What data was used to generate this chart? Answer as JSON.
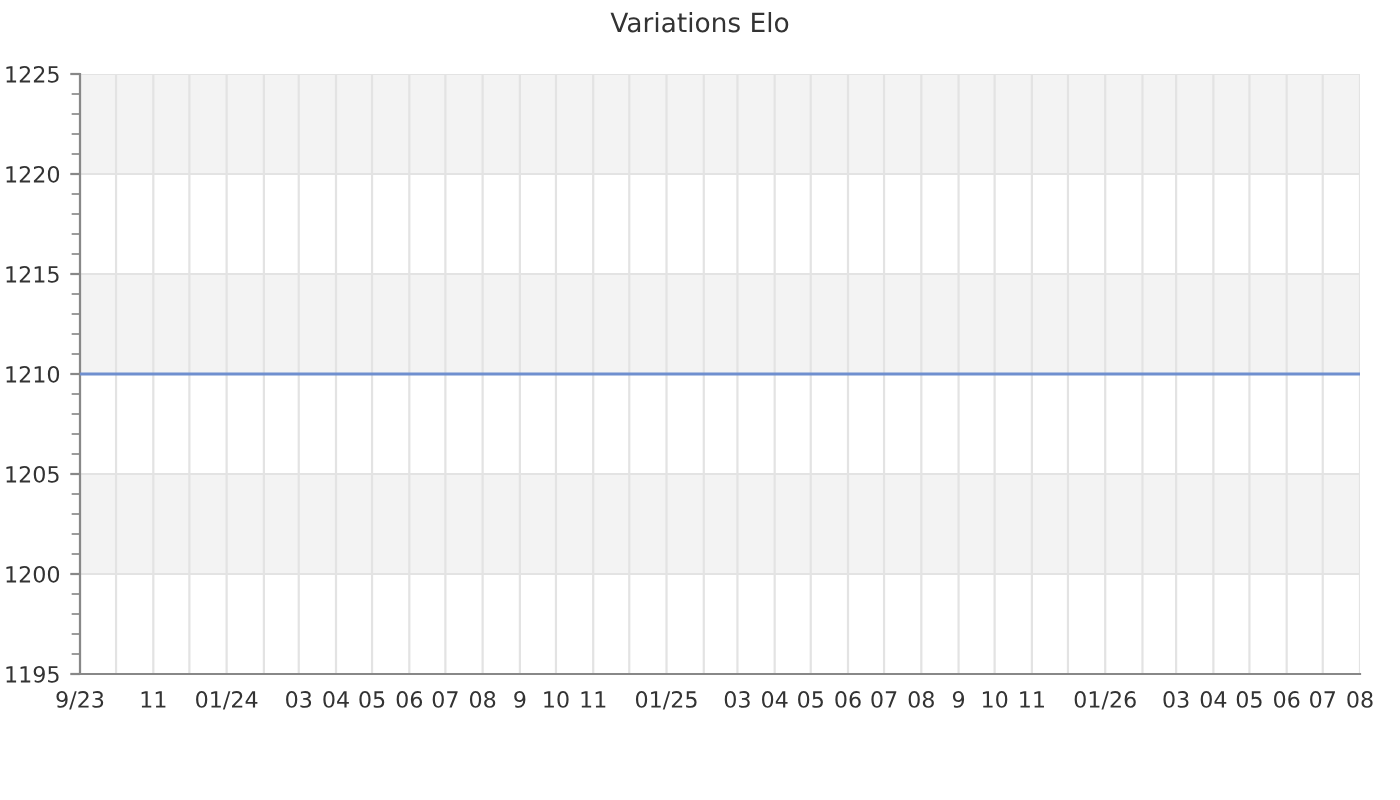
{
  "chart_data": {
    "type": "line",
    "title": "Variations Elo",
    "x": [
      "2023-09-01",
      "2026-08-01"
    ],
    "series": [
      {
        "color": "#6f8fcf",
        "values": [
          1210,
          1210
        ]
      }
    ],
    "xlim": [
      "2023-09-01",
      "2026-08-01"
    ],
    "xticks": [
      {
        "value": "2023-09-01",
        "label": "9/23"
      },
      {
        "value": "2023-10-01",
        "label": null
      },
      {
        "value": "2023-11-01",
        "label": "11"
      },
      {
        "value": "2023-12-01",
        "label": null
      },
      {
        "value": "2024-01-01",
        "label": "01/24"
      },
      {
        "value": "2024-02-01",
        "label": null
      },
      {
        "value": "2024-03-01",
        "label": "03"
      },
      {
        "value": "2024-04-01",
        "label": "04"
      },
      {
        "value": "2024-05-01",
        "label": "05"
      },
      {
        "value": "2024-06-01",
        "label": "06"
      },
      {
        "value": "2024-07-01",
        "label": "07"
      },
      {
        "value": "2024-08-01",
        "label": "08"
      },
      {
        "value": "2024-09-01",
        "label": "9"
      },
      {
        "value": "2024-10-01",
        "label": "10"
      },
      {
        "value": "2024-11-01",
        "label": "11"
      },
      {
        "value": "2024-12-01",
        "label": null
      },
      {
        "value": "2025-01-01",
        "label": "01/25"
      },
      {
        "value": "2025-02-01",
        "label": null
      },
      {
        "value": "2025-03-01",
        "label": "03"
      },
      {
        "value": "2025-04-01",
        "label": "04"
      },
      {
        "value": "2025-05-01",
        "label": "05"
      },
      {
        "value": "2025-06-01",
        "label": "06"
      },
      {
        "value": "2025-07-01",
        "label": "07"
      },
      {
        "value": "2025-08-01",
        "label": "08"
      },
      {
        "value": "2025-09-01",
        "label": "9"
      },
      {
        "value": "2025-10-01",
        "label": "10"
      },
      {
        "value": "2025-11-01",
        "label": "11"
      },
      {
        "value": "2025-12-01",
        "label": null
      },
      {
        "value": "2026-01-01",
        "label": "01/26"
      },
      {
        "value": "2026-02-01",
        "label": null
      },
      {
        "value": "2026-03-01",
        "label": "03"
      },
      {
        "value": "2026-04-01",
        "label": "04"
      },
      {
        "value": "2026-05-01",
        "label": "05"
      },
      {
        "value": "2026-06-01",
        "label": "06"
      },
      {
        "value": "2026-07-01",
        "label": "07"
      },
      {
        "value": "2026-08-01",
        "label": "08"
      }
    ],
    "ylim": [
      1195,
      1225
    ],
    "yticks": [
      1195,
      1200,
      1205,
      1210,
      1215,
      1220,
      1225
    ],
    "bands": [
      {
        "axis": "y",
        "from": 1200,
        "to": 1205,
        "color": "#f3f3f3"
      },
      {
        "axis": "y",
        "from": 1210,
        "to": 1215,
        "color": "#f3f3f3"
      },
      {
        "axis": "y",
        "from": 1220,
        "to": 1225,
        "color": "#f3f3f3"
      }
    ],
    "grid": true,
    "legend": false,
    "marker": "none",
    "line_style": "solid"
  }
}
